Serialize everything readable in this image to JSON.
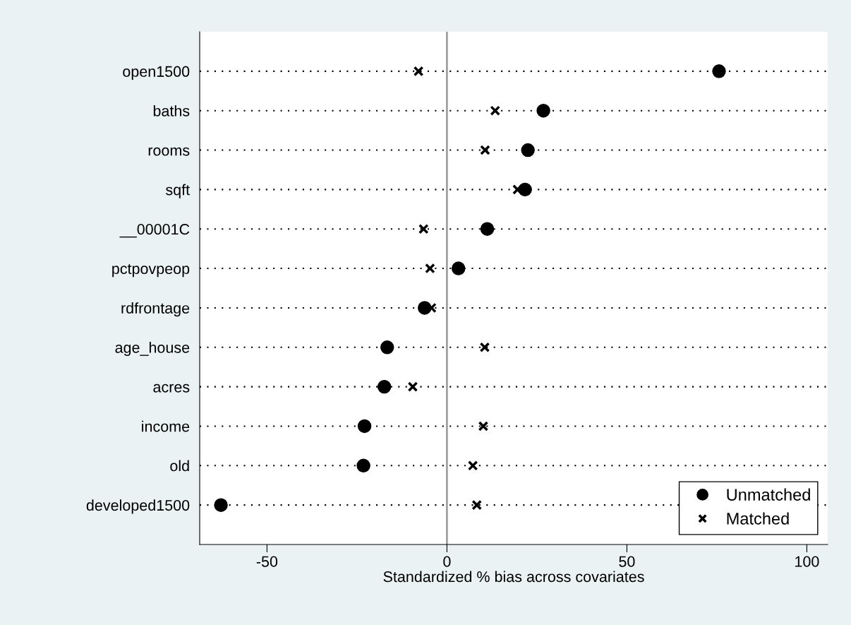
{
  "chart_data": {
    "type": "scatter",
    "orientation": "horizontal",
    "xlabel": "Standardized % bias across covariates",
    "categories": [
      "open1500",
      "baths",
      "rooms",
      "sqft",
      "__00001C",
      "pctpovpeop",
      "rdfrontage",
      "age_house",
      "acres",
      "income",
      "old",
      "developed1500"
    ],
    "series": [
      {
        "name": "Unmatched",
        "color": "#000000",
        "marker": "circle",
        "values": [
          75.6,
          26.8,
          22.5,
          21.7,
          11.2,
          3.2,
          -6.2,
          -16.6,
          -17.4,
          -22.9,
          -23.2,
          -62.8
        ]
      },
      {
        "name": "Matched",
        "color": "#000000",
        "marker": "cross",
        "values": [
          -7.9,
          13.4,
          10.6,
          19.6,
          -6.5,
          -4.7,
          -4.3,
          10.5,
          -9.5,
          10.1,
          7.2,
          8.3
        ]
      }
    ],
    "xlim": [
      -68.7,
      105.8
    ],
    "xticks": [
      -50,
      0,
      50,
      100
    ],
    "grid": "y",
    "legend": "bottom right",
    "ref_lines": [
      {
        "axis": "x",
        "value": 0,
        "color": "#a0a0a0"
      }
    ]
  }
}
